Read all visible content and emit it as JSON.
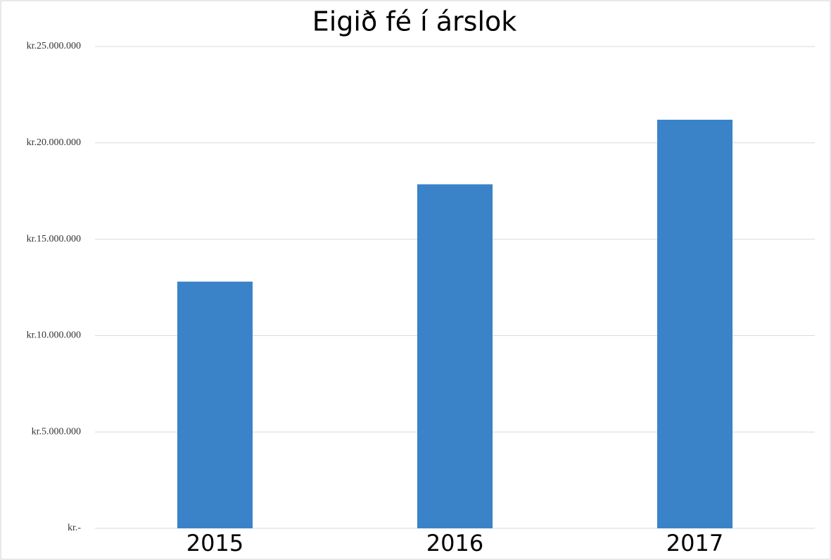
{
  "chart_data": {
    "type": "bar",
    "title": "Eigið fé í árslok",
    "categories": [
      "2015",
      "2016",
      "2017"
    ],
    "values": [
      12800000,
      17850000,
      21200000
    ],
    "color": "#3a83c8",
    "ylim": [
      0,
      25000000
    ],
    "yticks": [
      {
        "value": 0,
        "label": "kr.-"
      },
      {
        "value": 5000000,
        "label": "kr.5.000.000"
      },
      {
        "value": 10000000,
        "label": "kr.10.000.000"
      },
      {
        "value": 15000000,
        "label": "kr.15.000.000"
      },
      {
        "value": 20000000,
        "label": "kr.20.000.000"
      },
      {
        "value": 25000000,
        "label": "kr.25.000.000"
      }
    ],
    "grid": true
  }
}
